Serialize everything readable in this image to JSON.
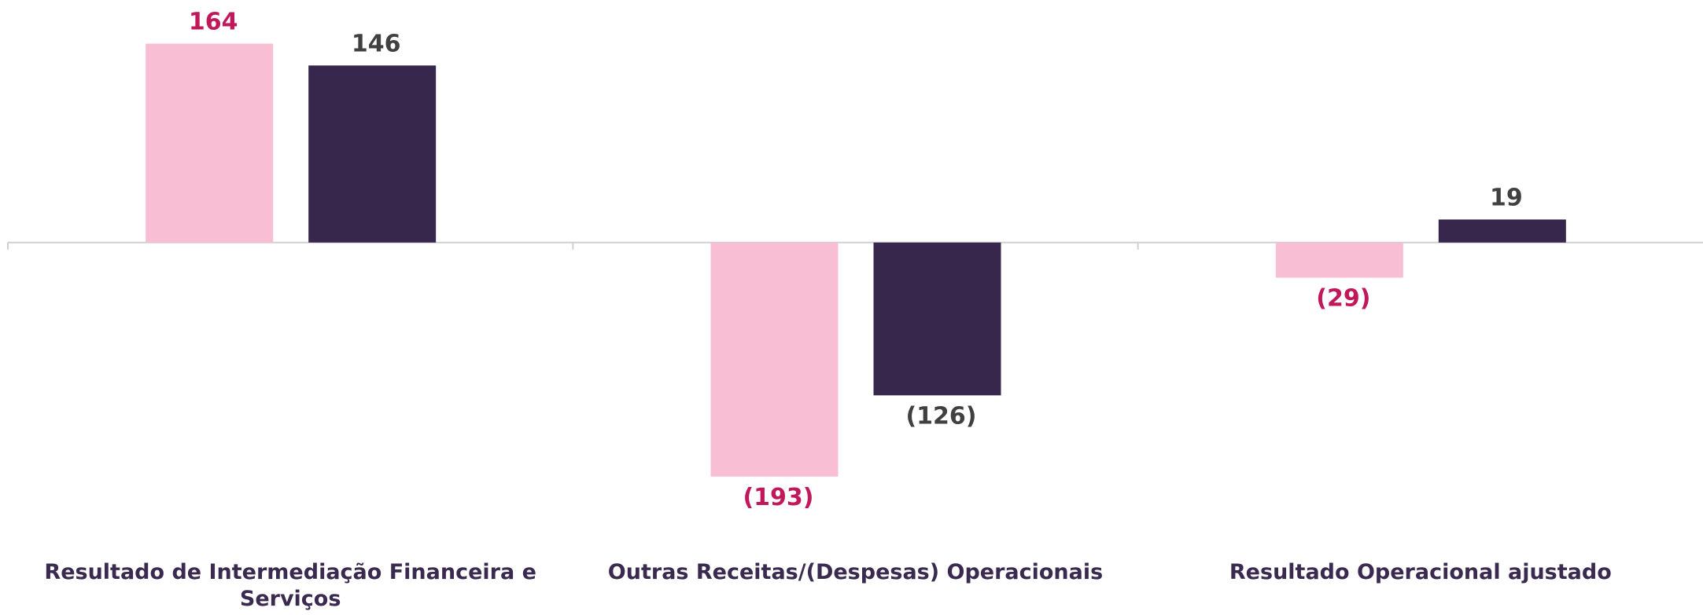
{
  "chart_data": {
    "type": "bar",
    "categories": [
      "Resultado de Intermediação Financeira e Serviços",
      "Outras Receitas/(Despesas) Operacionais",
      "Resultado Operacional ajustado"
    ],
    "series": [
      {
        "color": "#f8bfd4",
        "label_color": "#c0185a",
        "values": [
          164,
          -193,
          -29
        ],
        "value_labels": [
          "164",
          "(193)",
          "(29)"
        ]
      },
      {
        "color": "#38274d",
        "label_color": "#404040",
        "values": [
          146,
          -126,
          19
        ],
        "value_labels": [
          "146",
          "(126)",
          "19"
        ]
      }
    ],
    "ylim": [
      -300,
      200
    ]
  }
}
